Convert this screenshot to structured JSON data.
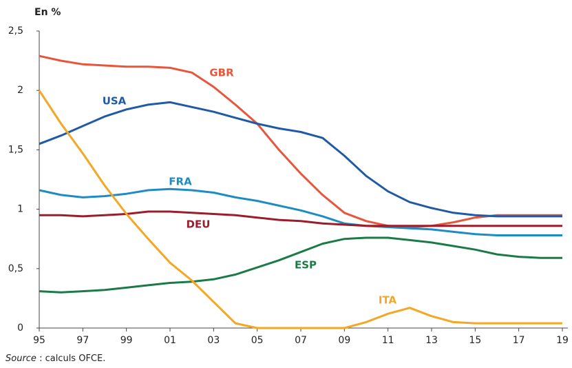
{
  "chart_data": {
    "type": "line",
    "ylabel": "En %",
    "source": {
      "label": "Source",
      "text": " : calculs OFCE."
    },
    "categories": [
      "95",
      null,
      "97",
      null,
      "99",
      null,
      "01",
      null,
      "03",
      null,
      "05",
      null,
      "07",
      null,
      "09",
      null,
      "11",
      null,
      "13",
      null,
      "15",
      null,
      "17",
      null,
      "19"
    ],
    "ylim": [
      0,
      2.5
    ],
    "yticks": [
      0,
      {
        "value": 0.5,
        "label": "0,5"
      },
      1,
      {
        "value": 1.5,
        "label": "1,5"
      },
      2,
      {
        "value": 2.5,
        "label": "2,5"
      }
    ],
    "grid": false,
    "series": [
      {
        "name": "GBR",
        "color": "#e8553a",
        "values": [
          2.29,
          2.25,
          2.22,
          2.21,
          2.2,
          2.2,
          2.19,
          2.15,
          2.03,
          1.88,
          1.72,
          1.5,
          1.3,
          1.12,
          0.97,
          0.9,
          0.86,
          0.85,
          0.86,
          0.89,
          0.93,
          0.95,
          0.95,
          0.95,
          0.95
        ]
      },
      {
        "name": "USA",
        "color": "#1f5aa6",
        "values": [
          1.55,
          1.62,
          1.7,
          1.78,
          1.84,
          1.88,
          1.9,
          1.86,
          1.82,
          1.77,
          1.72,
          1.68,
          1.65,
          1.6,
          1.45,
          1.28,
          1.15,
          1.06,
          1.01,
          0.97,
          0.95,
          0.94,
          0.94,
          0.94,
          0.94
        ]
      },
      {
        "name": "FRA",
        "color": "#1e8bc3",
        "values": [
          1.16,
          1.12,
          1.1,
          1.11,
          1.13,
          1.16,
          1.17,
          1.16,
          1.14,
          1.1,
          1.07,
          1.03,
          0.99,
          0.94,
          0.88,
          0.86,
          0.85,
          0.84,
          0.83,
          0.81,
          0.79,
          0.78,
          0.78,
          0.78,
          0.78
        ]
      },
      {
        "name": "DEU",
        "color": "#9b1c2a",
        "values": [
          0.95,
          0.95,
          0.94,
          0.95,
          0.96,
          0.98,
          0.98,
          0.97,
          0.96,
          0.95,
          0.93,
          0.91,
          0.9,
          0.88,
          0.87,
          0.86,
          0.86,
          0.86,
          0.86,
          0.86,
          0.86,
          0.86,
          0.86,
          0.86,
          0.86
        ]
      },
      {
        "name": "ESP",
        "color": "#1b7a45",
        "values": [
          0.31,
          0.3,
          0.31,
          0.32,
          0.34,
          0.36,
          0.38,
          0.39,
          0.41,
          0.45,
          0.51,
          0.57,
          0.64,
          0.71,
          0.75,
          0.76,
          0.76,
          0.74,
          0.72,
          0.69,
          0.66,
          0.62,
          0.6,
          0.59,
          0.59
        ]
      },
      {
        "name": "ITA",
        "color": "#f5a623",
        "values": [
          2.0,
          1.72,
          1.47,
          1.2,
          0.96,
          0.75,
          0.55,
          0.4,
          0.22,
          0.04,
          0,
          0,
          0,
          0,
          0,
          0.05,
          0.12,
          0.17,
          0.1,
          0.05,
          0.04,
          0.04,
          0.04,
          0.04,
          0.04
        ]
      }
    ]
  }
}
